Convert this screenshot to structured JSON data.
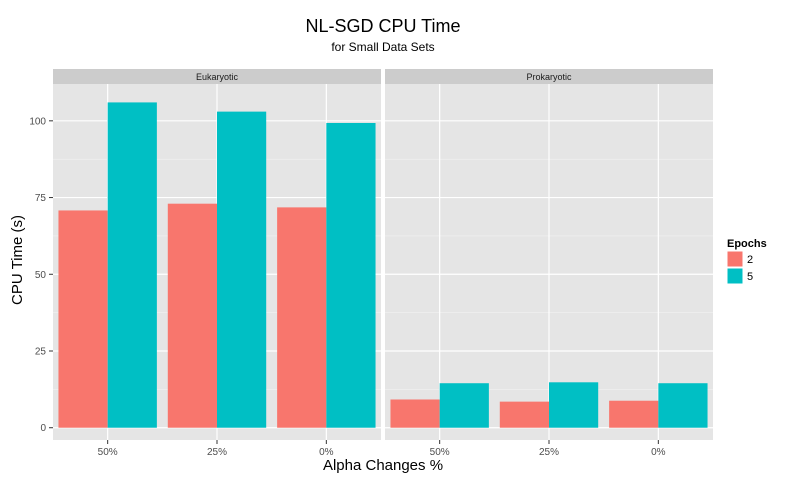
{
  "chart_data": {
    "type": "bar",
    "title": "NL-SGD CPU Time",
    "subtitle": "for Small Data Sets",
    "xlabel": "Alpha Changes %",
    "ylabel": "CPU Time (s)",
    "ylim": [
      -4,
      112
    ],
    "yticks": [
      0,
      25,
      50,
      75,
      100
    ],
    "grid": true,
    "categories": [
      "50%",
      "25%",
      "0%"
    ],
    "legend": {
      "title": "Epochs",
      "position": "right",
      "entries": [
        "2",
        "5"
      ]
    },
    "colors": [
      "#F8766D",
      "#00BFC4"
    ],
    "panels": [
      {
        "name": "Eukaryotic",
        "series": [
          {
            "name": "2",
            "values": [
              70.8,
              73.0,
              71.8
            ]
          },
          {
            "name": "5",
            "values": [
              106.0,
              103.0,
              99.3
            ]
          }
        ]
      },
      {
        "name": "Prokaryotic",
        "series": [
          {
            "name": "2",
            "values": [
              9.2,
              8.5,
              8.8
            ]
          },
          {
            "name": "5",
            "values": [
              14.5,
              14.8,
              14.5
            ]
          }
        ]
      }
    ]
  }
}
